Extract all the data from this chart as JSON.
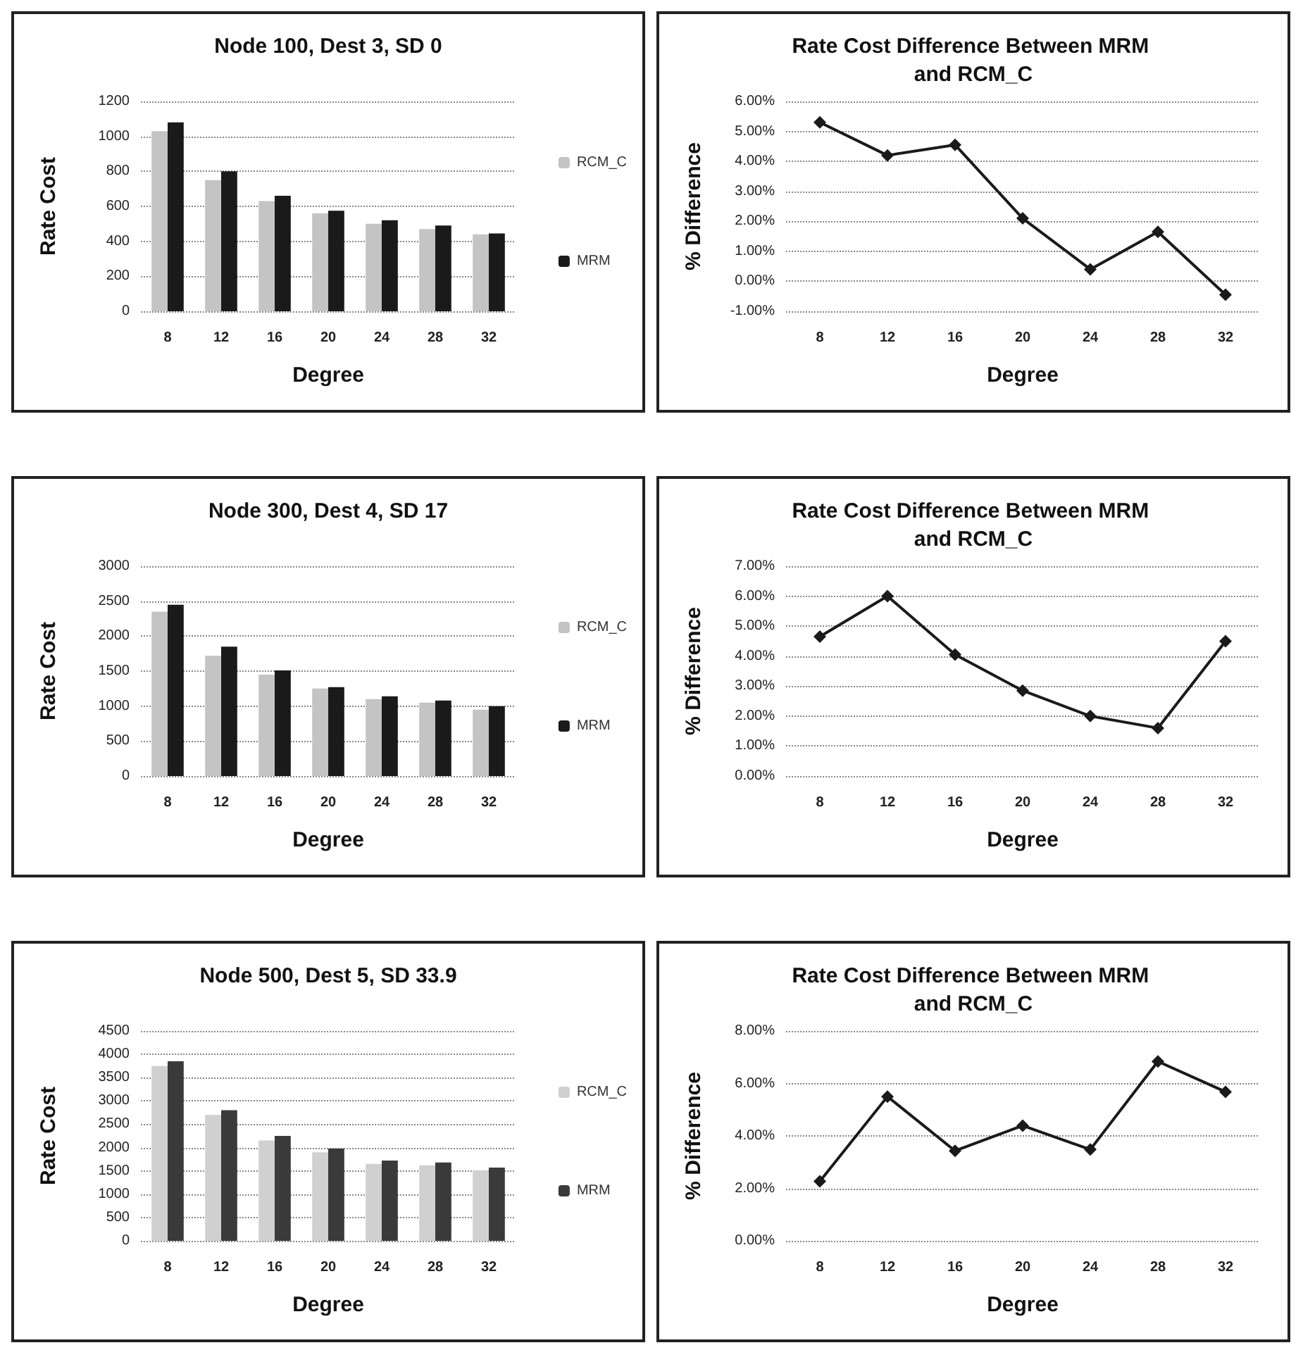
{
  "chart_data": [
    {
      "type": "bar",
      "title": "Node 100, Dest 3, SD 0",
      "xlabel": "Degree",
      "ylabel": "Rate Cost",
      "categories": [
        "8",
        "12",
        "16",
        "20",
        "24",
        "28",
        "32"
      ],
      "series": [
        {
          "name": "RCM_C",
          "color": "#c4c4c4",
          "values": [
            1030,
            750,
            630,
            560,
            500,
            470,
            440
          ]
        },
        {
          "name": "MRM",
          "color": "#1a1a1a",
          "values": [
            1080,
            800,
            660,
            575,
            520,
            490,
            445
          ]
        }
      ],
      "ylim": [
        0,
        1200
      ],
      "yticks": [
        0,
        200,
        400,
        600,
        800,
        1000,
        1200
      ],
      "grid": "y",
      "legend": "right"
    },
    {
      "type": "line",
      "title": "Rate Cost Difference Between MRM and RCM_C",
      "xlabel": "Degree",
      "ylabel": "% Difference",
      "categories": [
        "8",
        "12",
        "16",
        "20",
        "24",
        "28",
        "32"
      ],
      "series": [
        {
          "color": "#1a1a1a",
          "values": [
            5.3,
            4.2,
            4.55,
            2.1,
            0.4,
            1.65,
            -0.45
          ]
        }
      ],
      "ylim": [
        -1,
        6
      ],
      "yticks": [
        {
          "value": -1,
          "label": "-1.00%"
        },
        {
          "value": 0,
          "label": "0.00%"
        },
        {
          "value": 1,
          "label": "1.00%"
        },
        {
          "value": 2,
          "label": "2.00%"
        },
        {
          "value": 3,
          "label": "3.00%"
        },
        {
          "value": 4,
          "label": "4.00%"
        },
        {
          "value": 5,
          "label": "5.00%"
        },
        {
          "value": 6,
          "label": "6.00%"
        }
      ],
      "grid": "y",
      "marker": "diamond"
    },
    {
      "type": "bar",
      "title": "Node 300, Dest 4, SD 17",
      "xlabel": "Degree",
      "ylabel": "Rate Cost",
      "categories": [
        "8",
        "12",
        "16",
        "20",
        "24",
        "28",
        "32"
      ],
      "series": [
        {
          "name": "RCM_C",
          "color": "#c4c4c4",
          "values": [
            2350,
            1720,
            1450,
            1250,
            1100,
            1050,
            950
          ]
        },
        {
          "name": "MRM",
          "color": "#1a1a1a",
          "values": [
            2450,
            1850,
            1510,
            1270,
            1140,
            1080,
            1000
          ]
        }
      ],
      "ylim": [
        0,
        3000
      ],
      "yticks": [
        0,
        500,
        1000,
        1500,
        2000,
        2500,
        3000
      ],
      "grid": "y",
      "legend": "right"
    },
    {
      "type": "line",
      "title": "Rate Cost Difference Between MRM and RCM_C",
      "xlabel": "Degree",
      "ylabel": "% Difference",
      "categories": [
        "8",
        "12",
        "16",
        "20",
        "24",
        "28",
        "32"
      ],
      "series": [
        {
          "color": "#1a1a1a",
          "values": [
            4.65,
            6.0,
            4.05,
            2.85,
            2.0,
            1.6,
            4.5
          ]
        }
      ],
      "ylim": [
        0,
        7
      ],
      "yticks": [
        {
          "value": 0,
          "label": "0.00%"
        },
        {
          "value": 1,
          "label": "1.00%"
        },
        {
          "value": 2,
          "label": "2.00%"
        },
        {
          "value": 3,
          "label": "3.00%"
        },
        {
          "value": 4,
          "label": "4.00%"
        },
        {
          "value": 5,
          "label": "5.00%"
        },
        {
          "value": 6,
          "label": "6.00%"
        },
        {
          "value": 7,
          "label": "7.00%"
        }
      ],
      "grid": "y",
      "marker": "diamond"
    },
    {
      "type": "bar",
      "title": "Node 500, Dest 5, SD 33.9",
      "xlabel": "Degree",
      "ylabel": "Rate Cost",
      "categories": [
        "8",
        "12",
        "16",
        "20",
        "24",
        "28",
        "32"
      ],
      "series": [
        {
          "name": "RCM_C",
          "color": "#d0d0d0",
          "values": [
            3750,
            2700,
            2150,
            1900,
            1650,
            1620,
            1500
          ]
        },
        {
          "name": "MRM",
          "color": "#3a3a3a",
          "values": [
            3850,
            2800,
            2250,
            1980,
            1720,
            1680,
            1570
          ]
        }
      ],
      "ylim": [
        0,
        4500
      ],
      "yticks": [
        0,
        500,
        1000,
        1500,
        2000,
        2500,
        3000,
        3500,
        4000,
        4500
      ],
      "grid": "y",
      "legend": "right"
    },
    {
      "type": "line",
      "title": "Rate Cost Difference Between MRM and RCM_C",
      "xlabel": "Degree",
      "ylabel": "% Difference",
      "categories": [
        "8",
        "12",
        "16",
        "20",
        "24",
        "28",
        "32"
      ],
      "series": [
        {
          "color": "#1a1a1a",
          "values": [
            2.27,
            5.5,
            3.43,
            4.39,
            3.48,
            6.84,
            5.68
          ]
        }
      ],
      "ylim": [
        0,
        8
      ],
      "yticks": [
        {
          "value": 0,
          "label": "0.00%"
        },
        {
          "value": 2,
          "label": "2.00%"
        },
        {
          "value": 4,
          "label": "4.00%"
        },
        {
          "value": 6,
          "label": "6.00%"
        },
        {
          "value": 8,
          "label": "8.00%"
        }
      ],
      "grid": "y",
      "marker": "diamond"
    }
  ]
}
